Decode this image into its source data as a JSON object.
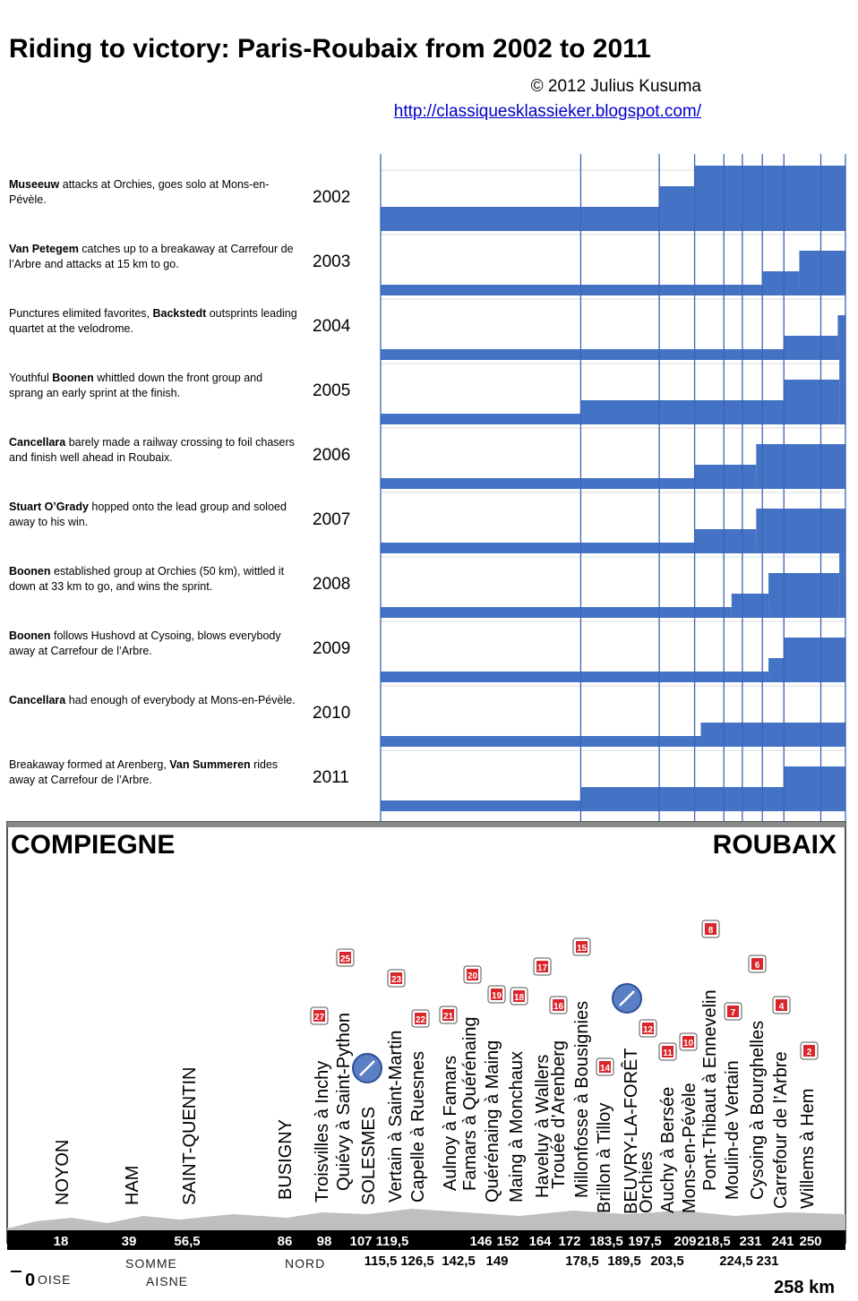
{
  "header": {
    "title": "Riding to victory: Paris-Roubaix from 2002 to 2011",
    "credit": "© 2012 Julius Kusuma",
    "url": "http://classiquesklassieker.blogspot.com/"
  },
  "chart_data": {
    "type": "area",
    "title": "Riding to victory: Paris-Roubaix from 2002 to 2011",
    "x_unit": "km",
    "x_range": [
      0,
      258
    ],
    "chart_x_start_km": 107,
    "marker_lines_km": [
      107,
      172,
      197.5,
      209,
      218.5,
      224.5,
      231,
      238,
      250
    ],
    "series_meaning": "step height = level of selection in the lead group (higher = smaller, more decisive group)",
    "years": [
      {
        "year": "2002",
        "prefix": "",
        "rider": "Museeuw",
        "suffix": " attacks at Orchies, goes solo at Mons-en-Pévèle.",
        "steps": [
          [
            107,
            1
          ],
          [
            197.5,
            2
          ],
          [
            209,
            3
          ]
        ]
      },
      {
        "year": "2003",
        "prefix": "",
        "rider": "Van Petegem",
        "suffix": " catches up to  a breakaway at Carrefour de l’Arbre and attacks at 15 km to go.",
        "steps": [
          [
            107,
            0.3
          ],
          [
            231,
            1
          ],
          [
            243,
            2
          ]
        ]
      },
      {
        "year": "2004",
        "prefix": "Punctures elimited favorites, ",
        "rider": "Backstedt",
        "suffix": " outsprints leading quartet at the velodrome.",
        "steps": [
          [
            107,
            0.3
          ],
          [
            238,
            1
          ],
          [
            255.5,
            2
          ]
        ]
      },
      {
        "year": "2005",
        "prefix": "Youthful ",
        "rider": "Boonen",
        "suffix": " whittled down the front group and sprang an early sprint at the finish.",
        "steps": [
          [
            107,
            0.3
          ],
          [
            172,
            1
          ],
          [
            238,
            2
          ],
          [
            256,
            3
          ]
        ]
      },
      {
        "year": "2006",
        "prefix": "",
        "rider": "Cancellara",
        "suffix": " barely made a railway crossing to foil chasers and finish well ahead in Roubaix.",
        "steps": [
          [
            107,
            0.3
          ],
          [
            209,
            1
          ],
          [
            229,
            2
          ]
        ]
      },
      {
        "year": "2007",
        "prefix": "",
        "rider": "Stuart O’Grady",
        "suffix": " hopped onto the lead group and soloed away to his win.",
        "steps": [
          [
            107,
            0.3
          ],
          [
            209,
            1
          ],
          [
            229,
            2
          ]
        ]
      },
      {
        "year": "2008",
        "prefix": "",
        "rider": "Boonen",
        "suffix": " established group at Orchies (50 km), wittled it down at 33 km to go, and wins the sprint.",
        "steps": [
          [
            107,
            0.3
          ],
          [
            221,
            1
          ],
          [
            233,
            2
          ],
          [
            256,
            3
          ]
        ]
      },
      {
        "year": "2009",
        "prefix": "",
        "rider": "Boonen",
        "suffix": " follows Hushovd at Cysoing, blows everybody away at Carrefour de l’Arbre.",
        "steps": [
          [
            107,
            0.3
          ],
          [
            233,
            1
          ],
          [
            238,
            2
          ]
        ]
      },
      {
        "year": "2010",
        "prefix": "",
        "rider": "Cancellara",
        "suffix": " had enough of everybody at Mons-en-Pévèle.",
        "steps": [
          [
            107,
            0.3
          ],
          [
            211,
            1
          ]
        ]
      },
      {
        "year": "2011",
        "prefix": "Breakaway formed at Arenberg, ",
        "rider": "Van Summeren",
        "suffix": " rides away at Carrefour de l’Arbre.",
        "steps": [
          [
            107,
            0.3
          ],
          [
            172,
            1
          ],
          [
            238,
            2
          ]
        ]
      }
    ],
    "profile": {
      "start_name": "COMPIEGNE",
      "end_name": "ROUBAIX",
      "total": "258 km",
      "start_km_label": "0",
      "km_labels_top": [
        "18",
        "39",
        "56,5",
        "86",
        "98",
        "107",
        "119,5",
        "146",
        "152",
        "164",
        "172",
        "183,5",
        "197,5",
        "209",
        "218,5",
        "231",
        "241",
        "250"
      ],
      "km_labels_bottom": [
        "115,5",
        "126,5",
        "142,5",
        "149",
        "178,5",
        "189,5",
        "203,5",
        "224,5",
        "231"
      ],
      "departments": [
        "OISE",
        "SOMME",
        "AISNE",
        "NORD"
      ],
      "towns": [
        "NOYON",
        "HAM",
        "SAINT-QUENTIN",
        "BUSIGNY",
        "SOLESMES",
        "BEUVRY-LA-FORÊT"
      ],
      "sectors": [
        {
          "name": "Troisvilles à Inchy",
          "num": "27"
        },
        {
          "name": "Quiévy à Saint-Python",
          "num": "25"
        },
        {
          "name": "Vertain à Saint-Martin",
          "num": "23"
        },
        {
          "name": "Capelle à Ruesnes",
          "num": "22"
        },
        {
          "name": "Aulnoy à Famars",
          "num": "21"
        },
        {
          "name": "Famars à Quérénaing",
          "num": "20"
        },
        {
          "name": "Quérénaing à Maing",
          "num": "19"
        },
        {
          "name": "Maing à Monchaux",
          "num": "18"
        },
        {
          "name": "Haveluy à Wallers",
          "num": "17"
        },
        {
          "name": "Trouée d’Arenberg",
          "num": "16"
        },
        {
          "name": "Millonfosse à Bousignies",
          "num": "15"
        },
        {
          "name": "Brillon à Tilloy",
          "num": "14"
        },
        {
          "name": "Orchies",
          "num": "12"
        },
        {
          "name": "Auchy à Bersée",
          "num": "11"
        },
        {
          "name": "Mons-en-Pévèle",
          "num": "10"
        },
        {
          "name": "Pont-Thibaut à Ennevelin",
          "num": "8"
        },
        {
          "name": "Moulin-de Vertain",
          "num": "7"
        },
        {
          "name": "Cysoing à Bourghelles",
          "num": "6"
        },
        {
          "name": "Carrefour de l’Arbre",
          "num": "4"
        },
        {
          "name": "Willems à Hem",
          "num": "2"
        }
      ]
    },
    "colors": {
      "fill": "#4472c4",
      "line": "#2f5597",
      "cobble": "#d9262c",
      "badge": "#5a7fc4"
    }
  }
}
